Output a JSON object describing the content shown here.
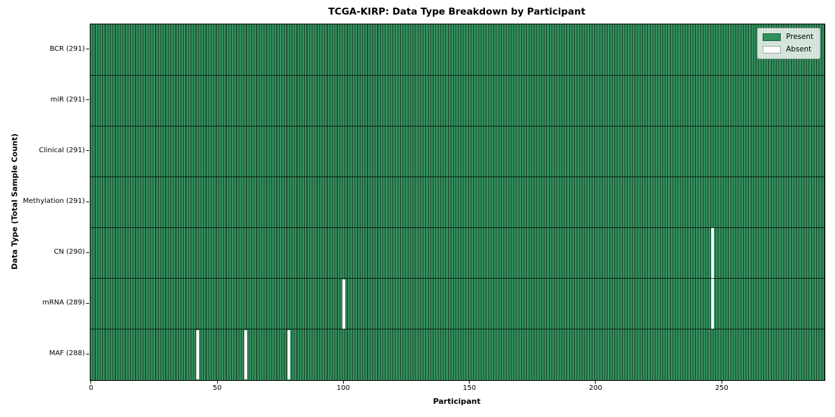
{
  "chart_data": {
    "type": "heatmap",
    "title": "TCGA-KIRP: Data Type Breakdown by Participant",
    "xlabel": "Participant",
    "ylabel": "Data Type (Total Sample Count)",
    "n_participants": 291,
    "x_ticks": [
      0,
      50,
      100,
      150,
      200,
      250
    ],
    "x_range": [
      -0.5,
      290.5
    ],
    "grid": "row-separators-only",
    "legend_position": "upper-right-inside",
    "rows": [
      {
        "label": "BCR (291)",
        "data_type": "BCR",
        "present_count": 291,
        "absent_participants": []
      },
      {
        "label": "miR (291)",
        "data_type": "miR",
        "present_count": 291,
        "absent_participants": []
      },
      {
        "label": "Clinical (291)",
        "data_type": "Clinical",
        "present_count": 291,
        "absent_participants": []
      },
      {
        "label": "Methylation (291)",
        "data_type": "Methylation",
        "present_count": 291,
        "absent_participants": []
      },
      {
        "label": "CN (290)",
        "data_type": "CN",
        "present_count": 290,
        "absent_participants": [
          246
        ]
      },
      {
        "label": "mRNA (289)",
        "data_type": "mRNA",
        "present_count": 289,
        "absent_participants": [
          100,
          246
        ]
      },
      {
        "label": "MAF (288)",
        "data_type": "MAF",
        "present_count": 288,
        "absent_participants": [
          42,
          61,
          78
        ]
      }
    ],
    "legend": [
      {
        "label": "Present",
        "color": "#2f8f5e"
      },
      {
        "label": "Absent",
        "color": "#ffffff"
      }
    ],
    "colors": {
      "present_fill": "#35925f",
      "bar_edge": "#16402a",
      "absent_fill": "#ffffff",
      "separator": "rgba(0,0,0,0.78)",
      "plot_border": "#000000"
    }
  }
}
